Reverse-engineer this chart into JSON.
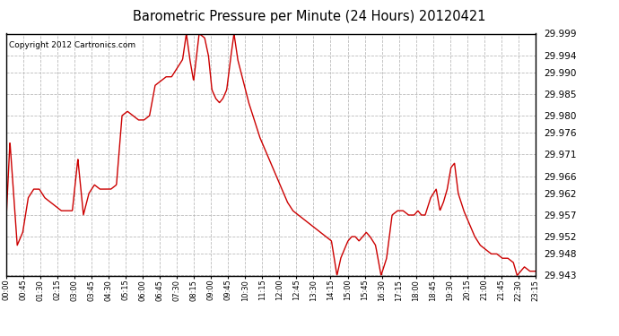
{
  "title": "Barometric Pressure per Minute (24 Hours) 20120421",
  "copyright": "Copyright 2012 Cartronics.com",
  "line_color": "#cc0000",
  "background_color": "#ffffff",
  "plot_background": "#ffffff",
  "grid_color": "#bbbbbb",
  "ylim_min": 29.943,
  "ylim_max": 29.999,
  "yticks": [
    29.943,
    29.948,
    29.952,
    29.957,
    29.962,
    29.966,
    29.971,
    29.976,
    29.98,
    29.985,
    29.99,
    29.994,
    29.999
  ],
  "xtick_labels": [
    "00:00",
    "00:45",
    "01:30",
    "02:15",
    "03:00",
    "03:45",
    "04:30",
    "05:15",
    "06:00",
    "06:45",
    "07:30",
    "08:15",
    "09:00",
    "09:45",
    "10:30",
    "11:15",
    "12:00",
    "12:45",
    "13:30",
    "14:15",
    "15:00",
    "15:45",
    "16:30",
    "17:15",
    "18:00",
    "18:45",
    "19:30",
    "20:15",
    "21:00",
    "21:45",
    "22:30",
    "23:15"
  ],
  "key_points": [
    [
      0.0,
      29.956
    ],
    [
      0.17,
      29.974
    ],
    [
      0.5,
      29.95
    ],
    [
      0.75,
      29.953
    ],
    [
      1.0,
      29.961
    ],
    [
      1.25,
      29.963
    ],
    [
      1.5,
      29.963
    ],
    [
      1.75,
      29.961
    ],
    [
      2.0,
      29.96
    ],
    [
      2.25,
      29.959
    ],
    [
      2.5,
      29.958
    ],
    [
      2.75,
      29.958
    ],
    [
      3.0,
      29.958
    ],
    [
      3.25,
      29.97
    ],
    [
      3.5,
      29.957
    ],
    [
      3.75,
      29.962
    ],
    [
      4.0,
      29.964
    ],
    [
      4.25,
      29.963
    ],
    [
      4.5,
      29.963
    ],
    [
      4.75,
      29.963
    ],
    [
      5.0,
      29.964
    ],
    [
      5.25,
      29.98
    ],
    [
      5.5,
      29.981
    ],
    [
      5.75,
      29.98
    ],
    [
      6.0,
      29.979
    ],
    [
      6.25,
      29.979
    ],
    [
      6.5,
      29.98
    ],
    [
      6.75,
      29.987
    ],
    [
      7.0,
      29.988
    ],
    [
      7.25,
      29.989
    ],
    [
      7.5,
      29.989
    ],
    [
      7.75,
      29.991
    ],
    [
      8.0,
      29.993
    ],
    [
      8.17,
      29.999
    ],
    [
      8.33,
      29.993
    ],
    [
      8.5,
      29.988
    ],
    [
      8.75,
      29.999
    ],
    [
      9.0,
      29.998
    ],
    [
      9.17,
      29.994
    ],
    [
      9.33,
      29.986
    ],
    [
      9.5,
      29.984
    ],
    [
      9.67,
      29.983
    ],
    [
      9.83,
      29.984
    ],
    [
      10.0,
      29.986
    ],
    [
      10.17,
      29.993
    ],
    [
      10.33,
      29.999
    ],
    [
      10.5,
      29.993
    ],
    [
      10.75,
      29.988
    ],
    [
      11.0,
      29.983
    ],
    [
      11.25,
      29.979
    ],
    [
      11.5,
      29.975
    ],
    [
      11.75,
      29.972
    ],
    [
      12.0,
      29.969
    ],
    [
      12.25,
      29.966
    ],
    [
      12.5,
      29.963
    ],
    [
      12.75,
      29.96
    ],
    [
      13.0,
      29.958
    ],
    [
      13.25,
      29.957
    ],
    [
      13.5,
      29.956
    ],
    [
      13.75,
      29.955
    ],
    [
      14.0,
      29.954
    ],
    [
      14.25,
      29.953
    ],
    [
      14.5,
      29.952
    ],
    [
      14.75,
      29.951
    ],
    [
      15.0,
      29.943
    ],
    [
      15.17,
      29.947
    ],
    [
      15.33,
      29.949
    ],
    [
      15.5,
      29.951
    ],
    [
      15.67,
      29.952
    ],
    [
      15.83,
      29.952
    ],
    [
      16.0,
      29.951
    ],
    [
      16.17,
      29.952
    ],
    [
      16.33,
      29.953
    ],
    [
      16.5,
      29.952
    ],
    [
      16.75,
      29.95
    ],
    [
      17.0,
      29.943
    ],
    [
      17.25,
      29.947
    ],
    [
      17.5,
      29.957
    ],
    [
      17.75,
      29.958
    ],
    [
      18.0,
      29.958
    ],
    [
      18.25,
      29.957
    ],
    [
      18.5,
      29.957
    ],
    [
      18.67,
      29.958
    ],
    [
      18.83,
      29.957
    ],
    [
      19.0,
      29.957
    ],
    [
      19.25,
      29.961
    ],
    [
      19.5,
      29.963
    ],
    [
      19.67,
      29.958
    ],
    [
      19.83,
      29.96
    ],
    [
      20.0,
      29.963
    ],
    [
      20.17,
      29.968
    ],
    [
      20.33,
      29.969
    ],
    [
      20.5,
      29.962
    ],
    [
      20.75,
      29.958
    ],
    [
      21.0,
      29.955
    ],
    [
      21.25,
      29.952
    ],
    [
      21.5,
      29.95
    ],
    [
      21.75,
      29.949
    ],
    [
      22.0,
      29.948
    ],
    [
      22.25,
      29.948
    ],
    [
      22.5,
      29.947
    ],
    [
      22.75,
      29.947
    ],
    [
      23.0,
      29.946
    ],
    [
      23.17,
      29.943
    ],
    [
      23.33,
      29.944
    ],
    [
      23.5,
      29.945
    ],
    [
      23.75,
      29.944
    ],
    [
      24.0,
      29.944
    ]
  ]
}
